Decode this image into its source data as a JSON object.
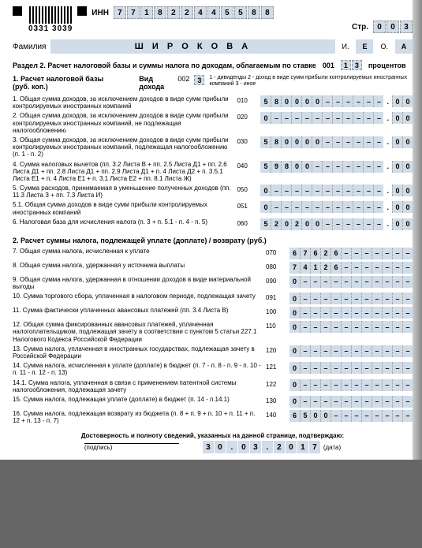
{
  "header": {
    "barcode_number": "0331 3039",
    "inn_label": "ИНН",
    "inn": [
      "7",
      "7",
      "1",
      "8",
      "2",
      "2",
      "4",
      "4",
      "5",
      "5",
      "8",
      "8"
    ],
    "str_label": "Стр.",
    "str": [
      "0",
      "0",
      "3"
    ],
    "surname_label": "Фамилия",
    "surname": "Ш И Р О К О В А",
    "i_label": "И.",
    "i_val": "Е",
    "o_label": "О.",
    "o_val": "А"
  },
  "section": {
    "title": "Раздел 2. Расчет налоговой базы и суммы налога по доходам, облагаемым по ставке",
    "rate_code": "001",
    "rate": [
      "1",
      "3"
    ],
    "rate_suffix": "процентов",
    "sub_label": "1. Расчет налоговой базы (руб. коп.)",
    "vid_label": "Вид дохода",
    "vid_code": "002",
    "vid_val": "3",
    "notes": "1 - дивиденды\n2 - доход в виде сумм прибыли контролируемых иностранных компаний\n3 - иное"
  },
  "lines": [
    {
      "text": "1. Общая сумма доходов, за исключением доходов в виде сумм прибыли контролируемых иностранных компаний",
      "code": "010",
      "main": [
        "5",
        "8",
        "0",
        "0",
        "0",
        "0",
        "–",
        "–",
        "–",
        "–",
        "–",
        "–"
      ],
      "dec": [
        "0",
        "0"
      ]
    },
    {
      "text": "2. Общая сумма доходов, за исключением доходов в виде сумм прибыли контролируемых иностранных компаний, не подлежащая налогообложению",
      "code": "020",
      "main": [
        "0",
        "–",
        "–",
        "–",
        "–",
        "–",
        "–",
        "–",
        "–",
        "–",
        "–",
        "–"
      ],
      "dec": [
        "0",
        "0"
      ]
    },
    {
      "text": "3. Общая сумма доходов, за исключением доходов в виде сумм прибыли контролируемых иностранных компаний, подлежащая налогообложению (п. 1 - п. 2)",
      "code": "030",
      "main": [
        "5",
        "8",
        "0",
        "0",
        "0",
        "0",
        "–",
        "–",
        "–",
        "–",
        "–",
        "–"
      ],
      "dec": [
        "0",
        "0"
      ]
    },
    {
      "text": "4. Сумма налоговых вычетов\n(пп. 3.2 Листа В + пп. 2.5 Листа Д1 + пп. 2.6 Листа Д1 + пп. 2.8 Листа Д1 + пп. 2.9 Листа Д1 + п. 4 Листа Д2 + п. 3.5.1 Листа Е1 + п. 4 Листа Е1 + п. 3.1 Листа Е2 + пп. 8.1 Листа Ж)",
      "code": "040",
      "main": [
        "5",
        "9",
        "8",
        "0",
        "0",
        "–",
        "–",
        "–",
        "–",
        "–",
        "–",
        "–"
      ],
      "dec": [
        "0",
        "0"
      ]
    },
    {
      "text": "5. Сумма расходов, принимаемая в уменьшение полученных доходов (пп. 11.3 Листа З + пп. 7.3 Листа И)",
      "code": "050",
      "main": [
        "0",
        "–",
        "–",
        "–",
        "–",
        "–",
        "–",
        "–",
        "–",
        "–",
        "–",
        "–"
      ],
      "dec": [
        "0",
        "0"
      ]
    },
    {
      "text": "5.1. Общая сумма доходов в виде сумм прибыли контролируемых иностранных компаний",
      "code": "051",
      "main": [
        "0",
        "–",
        "–",
        "–",
        "–",
        "–",
        "–",
        "–",
        "–",
        "–",
        "–",
        "–"
      ],
      "dec": [
        "0",
        "0"
      ]
    },
    {
      "text": "6. Налоговая база для исчисления налога\n(п. 3 + п. 5.1 - п. 4 - п. 5)",
      "code": "060",
      "main": [
        "5",
        "2",
        "0",
        "2",
        "0",
        "0",
        "–",
        "–",
        "–",
        "–",
        "–",
        "–"
      ],
      "dec": [
        "0",
        "0"
      ]
    }
  ],
  "sec2_title": "2. Расчет суммы налога, подлежащей уплате (доплате) / возврату (руб.)",
  "lines2": [
    {
      "text": "7. Общая сумма налога, исчисленная к уплате",
      "code": "070",
      "main": [
        "6",
        "7",
        "6",
        "2",
        "6",
        "–",
        "–",
        "–",
        "–",
        "–",
        "–",
        "–"
      ]
    },
    {
      "text": "8. Общая сумма налога, удержанная у источника выплаты",
      "code": "080",
      "main": [
        "7",
        "4",
        "1",
        "2",
        "6",
        "–",
        "–",
        "–",
        "–",
        "–",
        "–",
        "–"
      ]
    },
    {
      "text": "9. Общая сумма налога, удержанная в отношении доходов в виде материальной выгоды",
      "code": "090",
      "main": [
        "0",
        "–",
        "–",
        "–",
        "–",
        "–",
        "–",
        "–",
        "–",
        "–",
        "–",
        "–"
      ]
    },
    {
      "text": "10. Сумма торгового сбора, уплаченная в налоговом периоде, подлежащая зачету",
      "code": "091",
      "main": [
        "0",
        "–",
        "–",
        "–",
        "–",
        "–",
        "–",
        "–",
        "–",
        "–",
        "–",
        "–"
      ]
    },
    {
      "text": "11. Сумма фактически уплаченных авансовых платежей (пп. 3.4 Листа В)",
      "code": "100",
      "main": [
        "0",
        "–",
        "–",
        "–",
        "–",
        "–",
        "–",
        "–",
        "–",
        "–",
        "–",
        "–"
      ]
    },
    {
      "text": "12. Общая сумма фиксированных авансовых платежей, уплаченная налогоплательщиком, подлежащая зачету в соответствии с пунктом 5 статьи 227.1 Налогового Кодекса Российской Федерации",
      "code": "110",
      "main": [
        "0",
        "–",
        "–",
        "–",
        "–",
        "–",
        "–",
        "–",
        "–",
        "–",
        "–",
        "–"
      ]
    },
    {
      "text": "13. Сумма налога, уплаченная в иностранных государствах, подлежащая зачету в Российской Федерации",
      "code": "120",
      "main": [
        "0",
        "–",
        "–",
        "–",
        "–",
        "–",
        "–",
        "–",
        "–",
        "–",
        "–",
        "–"
      ]
    },
    {
      "text": "14. Сумма налога, исчисленная к уплате (доплате) в бюджет (п. 7 - п. 8 - п. 9 - п. 10 - п. 11 - п. 12 - п. 13)",
      "code": "121",
      "main": [
        "0",
        "–",
        "–",
        "–",
        "–",
        "–",
        "–",
        "–",
        "–",
        "–",
        "–",
        "–"
      ]
    },
    {
      "text": "14.1. Сумма налога, уплаченная в связи с применением патентной системы налогообложения, подлежащая зачету",
      "code": "122",
      "main": [
        "0",
        "–",
        "–",
        "–",
        "–",
        "–",
        "–",
        "–",
        "–",
        "–",
        "–",
        "–"
      ]
    },
    {
      "text": "15. Сумма налога, подлежащая уплате (доплате) в бюджет (п. 14 - п.14.1)",
      "code": "130",
      "main": [
        "0",
        "–",
        "–",
        "–",
        "–",
        "–",
        "–",
        "–",
        "–",
        "–",
        "–",
        "–"
      ]
    },
    {
      "text": "16. Сумма налога, подлежащая возврату из бюджета (п. 8 + п. 9 + п. 10 + п. 11 + п. 12 + п. 13 - п. 7)",
      "code": "140",
      "main": [
        "6",
        "5",
        "0",
        "0",
        "–",
        "–",
        "–",
        "–",
        "–",
        "–",
        "–",
        "–"
      ]
    }
  ],
  "footer": {
    "confirm": "Достоверность и полноту сведений, указанных на данной странице, подтверждаю:",
    "sign_label": "(подпись)",
    "date_label": "(дата)",
    "date": [
      "3",
      "0",
      ".",
      "0",
      "3",
      ".",
      "2",
      "0",
      "1",
      "7"
    ]
  }
}
